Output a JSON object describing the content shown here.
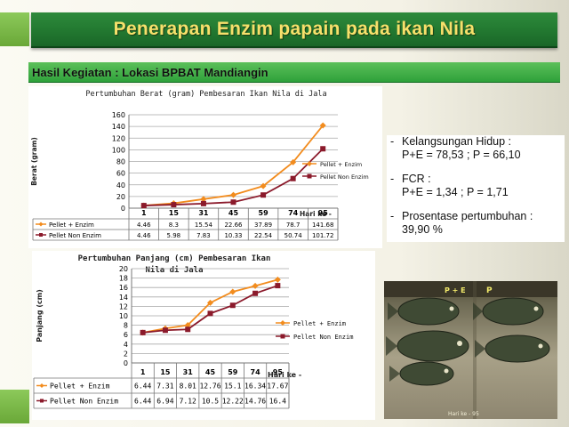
{
  "slide": {
    "title": "Penerapan Enzim papain pada ikan Nila",
    "subtitle": "Hasil Kegiatan : Lokasi BPBAT Mandiangin"
  },
  "colors": {
    "title_bg": "#237a31",
    "title_text": "#f6e06b",
    "subtitle_bg": "#3fb244",
    "series_pe": "#f28c1e",
    "series_pne": "#8b1a2b"
  },
  "bullets": [
    {
      "dash": "-",
      "line1": "Kelangsungan Hidup :",
      "line2": "P+E = 78,53 ; P = 66,10"
    },
    {
      "dash": "-",
      "line1": "FCR :",
      "line2": "P+E = 1,34  ; P = 1,71"
    },
    {
      "dash": "-",
      "line1": "Prosentase pertumbuhan :",
      "line2": "39,90 %"
    }
  ],
  "photo": {
    "label_top_pe": "P + E",
    "label_top_p": "P",
    "caption": "Hari ke - 95"
  },
  "chart_data": [
    {
      "type": "line",
      "title": "Pertumbuhan Berat (gram) Pembesaran Ikan Nila di Jala",
      "ylabel": "Berat (gram)",
      "xlabel": "Hari ke -",
      "categories": [
        "1",
        "15",
        "31",
        "45",
        "59",
        "74",
        "95"
      ],
      "ylim": [
        0,
        160
      ],
      "yticks": [
        0,
        20,
        40,
        60,
        80,
        100,
        120,
        140,
        160
      ],
      "grid": true,
      "legend": "right",
      "series": [
        {
          "name": "Pellet + Enzim",
          "values": [
            4.46,
            8.3,
            15.54,
            22.66,
            37.89,
            78.7,
            141.68
          ],
          "labels": [
            "4.46",
            "8.3",
            "15.54",
            "22.66",
            "37.89",
            "78.7",
            "141.68"
          ]
        },
        {
          "name": "Pellet Non Enzim",
          "values": [
            4.46,
            5.98,
            7.83,
            10.33,
            22.54,
            50.74,
            101.72
          ],
          "labels": [
            "4.46",
            "5.98",
            "7.83",
            "10.33",
            "22.54",
            "50.74",
            "101.72"
          ]
        }
      ]
    },
    {
      "type": "line",
      "title": "Pertumbuhan Panjang (cm) Pembesaran Ikan Nila di Jala",
      "title_line1": "Pertumbuhan Panjang (cm) Pembesaran Ikan",
      "title_line2": "Nila di Jala",
      "ylabel": "Panjang (cm)",
      "xlabel": "Hari ke -",
      "categories": [
        "1",
        "15",
        "31",
        "45",
        "59",
        "74",
        "95"
      ],
      "ylim": [
        0,
        20
      ],
      "yticks": [
        0,
        2,
        4,
        6,
        8,
        10,
        12,
        14,
        16,
        18,
        20
      ],
      "grid": true,
      "legend": "right",
      "series": [
        {
          "name": "Pellet + Enzim",
          "values": [
            6.44,
            7.31,
            8.01,
            12.76,
            15.1,
            16.34,
            17.67
          ],
          "labels": [
            "6.44",
            "7.31",
            "8.01",
            "12.76",
            "15.1",
            "16.34",
            "17.67"
          ]
        },
        {
          "name": "Pellet Non Enzim",
          "values": [
            6.44,
            6.94,
            7.12,
            10.5,
            12.22,
            14.76,
            16.4
          ],
          "labels": [
            "6.44",
            "6.94",
            "7.12",
            "10.5",
            "12.22",
            "14.76",
            "16.4"
          ]
        }
      ]
    }
  ]
}
